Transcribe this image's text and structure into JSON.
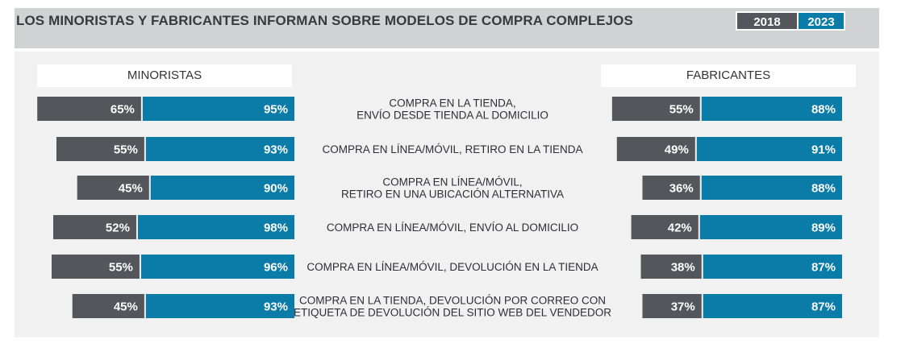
{
  "header": {
    "title": "LOS MINORISTAS Y FABRICANTES INFORMAN SOBRE MODELOS DE COMPRA COMPLEJOS",
    "badges": [
      {
        "label": "2018",
        "color": "#55565b"
      },
      {
        "label": "2023",
        "color": "#0b7ba8"
      }
    ]
  },
  "chart_data": {
    "type": "bar",
    "orientation": "horizontal",
    "groups": [
      "MINORISTAS",
      "FABRICANTES"
    ],
    "categories": [
      [
        "COMPRA EN LA TIENDA,",
        "ENVÍO DESDE TIENDA AL DOMICILIO"
      ],
      [
        "COMPRA EN LÍNEA/MÓVIL, RETIRO EN LA TIENDA"
      ],
      [
        "COMPRA EN LÍNEA/MÓVIL,",
        "RETIRO EN UNA UBICACIÓN ALTERNATIVA"
      ],
      [
        "COMPRA EN LÍNEA/MÓVIL, ENVÍO AL DOMICILIO"
      ],
      [
        "COMPRA EN LÍNEA/MÓVIL, DEVOLUCIÓN EN  LA TIENDA"
      ],
      [
        "COMPRA EN LA TIENDA, DEVOLUCIÓN POR CORREO CON",
        "ETIQUETA DE DEVOLUCIÓN DEL SITIO WEB DEL VENDEDOR"
      ]
    ],
    "series": [
      {
        "name": "2018",
        "color": "#55565b",
        "minoristas": [
          65,
          55,
          45,
          52,
          55,
          45
        ],
        "fabricantes": [
          55,
          49,
          36,
          42,
          38,
          37
        ]
      },
      {
        "name": "2023",
        "color": "#0b7ba8",
        "minoristas": [
          95,
          93,
          90,
          98,
          96,
          93
        ],
        "fabricantes": [
          88,
          91,
          88,
          89,
          87,
          87
        ]
      }
    ],
    "unit": "%"
  }
}
